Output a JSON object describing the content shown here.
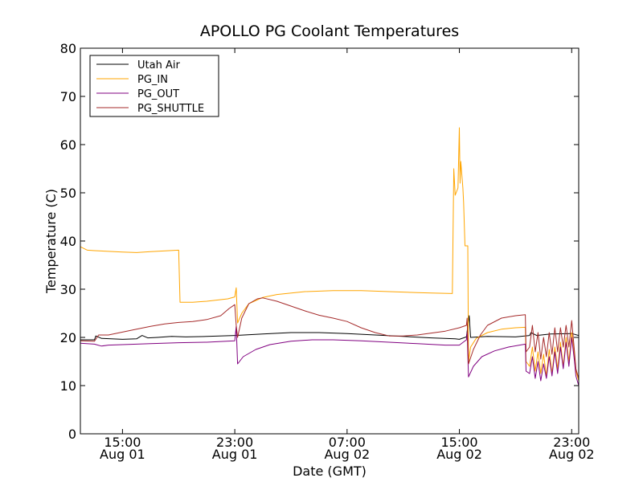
{
  "chart_data": {
    "type": "line",
    "title": "APOLLO PG Coolant Temperatures",
    "xlabel": "Date (GMT)",
    "ylabel": "Temperature (C)",
    "ylim": [
      0,
      80
    ],
    "xlim": [
      12,
      47.5
    ],
    "yticks": [
      0,
      10,
      20,
      30,
      40,
      50,
      60,
      70,
      80
    ],
    "xticks": [
      {
        "value": 15,
        "line1": "15:00",
        "line2": "Aug 01"
      },
      {
        "value": 23,
        "line1": "23:00",
        "line2": "Aug 01"
      },
      {
        "value": 31,
        "line1": "07:00",
        "line2": "Aug 02"
      },
      {
        "value": 39,
        "line1": "15:00",
        "line2": "Aug 02"
      },
      {
        "value": 47,
        "line1": "23:00",
        "line2": "Aug 02"
      }
    ],
    "legend_position": "top-left",
    "series": [
      {
        "name": "Utah Air",
        "color": "#000000",
        "points": [
          [
            12,
            19.5
          ],
          [
            13,
            19.5
          ],
          [
            13.1,
            20.3
          ],
          [
            13.5,
            19.8
          ],
          [
            15,
            19.6
          ],
          [
            16,
            19.7
          ],
          [
            16.4,
            20.4
          ],
          [
            16.8,
            19.9
          ],
          [
            17.5,
            20.0
          ],
          [
            18.5,
            20.2
          ],
          [
            19.5,
            20.1
          ],
          [
            21,
            20.2
          ],
          [
            23,
            20.4
          ],
          [
            25,
            20.7
          ],
          [
            27,
            21.0
          ],
          [
            29,
            21.0
          ],
          [
            31,
            20.8
          ],
          [
            33,
            20.5
          ],
          [
            35,
            20.2
          ],
          [
            37,
            19.9
          ],
          [
            38.7,
            19.7
          ],
          [
            39,
            19.6
          ],
          [
            39.5,
            20.1
          ],
          [
            39.7,
            24.5
          ],
          [
            39.8,
            20.0
          ],
          [
            41,
            20.2
          ],
          [
            43,
            20.1
          ],
          [
            44,
            20.4
          ],
          [
            44.1,
            21.0
          ],
          [
            44.5,
            20.4
          ],
          [
            45.5,
            20.7
          ],
          [
            47,
            20.8
          ],
          [
            47.5,
            20.4
          ]
        ]
      },
      {
        "name": "PG_IN",
        "color": "#ffa500",
        "points": [
          [
            12,
            38.8
          ],
          [
            12.5,
            38.1
          ],
          [
            13,
            38.0
          ],
          [
            15,
            37.7
          ],
          [
            16,
            37.6
          ],
          [
            17,
            37.8
          ],
          [
            19,
            38.1
          ],
          [
            19.1,
            27.3
          ],
          [
            20,
            27.3
          ],
          [
            21,
            27.5
          ],
          [
            22.5,
            28.0
          ],
          [
            23,
            28.4
          ],
          [
            23.1,
            30.3
          ],
          [
            23.2,
            23.0
          ],
          [
            23.5,
            25.0
          ],
          [
            24,
            27.0
          ],
          [
            25,
            28.3
          ],
          [
            26,
            28.9
          ],
          [
            28,
            29.5
          ],
          [
            30,
            29.7
          ],
          [
            32,
            29.7
          ],
          [
            34,
            29.5
          ],
          [
            36,
            29.3
          ],
          [
            37,
            29.2
          ],
          [
            38.5,
            29.1
          ],
          [
            38.6,
            55.0
          ],
          [
            38.7,
            49.5
          ],
          [
            38.9,
            51.0
          ],
          [
            39.0,
            63.5
          ],
          [
            39.05,
            52.0
          ],
          [
            39.1,
            56.5
          ],
          [
            39.25,
            51.0
          ],
          [
            39.3,
            48.0
          ],
          [
            39.4,
            39.0
          ],
          [
            39.6,
            39.0
          ],
          [
            39.65,
            15.0
          ],
          [
            39.8,
            18.0
          ],
          [
            40.2,
            19.8
          ],
          [
            41,
            21.0
          ],
          [
            42,
            21.7
          ],
          [
            43,
            22.0
          ],
          [
            43.7,
            22.1
          ],
          [
            43.75,
            15.0
          ],
          [
            44,
            14.0
          ],
          [
            44.2,
            18.0
          ],
          [
            44.4,
            13.0
          ],
          [
            44.6,
            17.0
          ],
          [
            44.8,
            12.5
          ],
          [
            45,
            16.5
          ],
          [
            45.2,
            12.0
          ],
          [
            45.4,
            17.5
          ],
          [
            45.6,
            12.5
          ],
          [
            45.8,
            18.0
          ],
          [
            46,
            13.5
          ],
          [
            46.2,
            19.0
          ],
          [
            46.4,
            14.0
          ],
          [
            46.6,
            20.0
          ],
          [
            46.8,
            15.0
          ],
          [
            47,
            21.0
          ],
          [
            47.2,
            16.0
          ],
          [
            47.3,
            13.0
          ],
          [
            47.5,
            11.0
          ]
        ]
      },
      {
        "name": "PG_OUT",
        "color": "#800080",
        "points": [
          [
            12,
            18.8
          ],
          [
            13,
            18.6
          ],
          [
            13.5,
            18.2
          ],
          [
            14,
            18.4
          ],
          [
            15,
            18.5
          ],
          [
            17,
            18.7
          ],
          [
            19,
            18.9
          ],
          [
            21,
            19.0
          ],
          [
            23,
            19.3
          ],
          [
            23.1,
            22.3
          ],
          [
            23.2,
            14.5
          ],
          [
            23.6,
            16.0
          ],
          [
            24.5,
            17.5
          ],
          [
            25.5,
            18.5
          ],
          [
            27,
            19.2
          ],
          [
            28.5,
            19.5
          ],
          [
            30,
            19.5
          ],
          [
            32,
            19.3
          ],
          [
            34,
            19.0
          ],
          [
            36,
            18.7
          ],
          [
            38,
            18.4
          ],
          [
            39,
            18.4
          ],
          [
            39.5,
            19.5
          ],
          [
            39.55,
            21.0
          ],
          [
            39.65,
            11.8
          ],
          [
            40,
            14.0
          ],
          [
            40.6,
            16.0
          ],
          [
            41.5,
            17.2
          ],
          [
            42.5,
            18.0
          ],
          [
            43.7,
            18.6
          ],
          [
            43.75,
            13.0
          ],
          [
            44,
            12.5
          ],
          [
            44.2,
            16.0
          ],
          [
            44.4,
            11.5
          ],
          [
            44.6,
            15.0
          ],
          [
            44.8,
            11.0
          ],
          [
            45,
            14.5
          ],
          [
            45.2,
            11.5
          ],
          [
            45.4,
            16.0
          ],
          [
            45.6,
            12.0
          ],
          [
            45.8,
            17.0
          ],
          [
            46,
            12.5
          ],
          [
            46.2,
            18.0
          ],
          [
            46.4,
            13.5
          ],
          [
            46.6,
            19.0
          ],
          [
            46.8,
            14.0
          ],
          [
            47,
            20.0
          ],
          [
            47.2,
            15.0
          ],
          [
            47.3,
            12.0
          ],
          [
            47.5,
            10.0
          ]
        ]
      },
      {
        "name": "PG_SHUTTLE",
        "color": "#a52a2a",
        "points": [
          [
            12,
            19.3
          ],
          [
            13,
            19.2
          ],
          [
            13.3,
            20.5
          ],
          [
            14,
            20.5
          ],
          [
            15,
            21.1
          ],
          [
            16,
            21.7
          ],
          [
            17,
            22.3
          ],
          [
            18,
            22.8
          ],
          [
            19,
            23.1
          ],
          [
            20,
            23.3
          ],
          [
            21,
            23.7
          ],
          [
            22,
            24.5
          ],
          [
            22.6,
            26.0
          ],
          [
            23,
            26.8
          ],
          [
            23.1,
            22.5
          ],
          [
            23.2,
            20.0
          ],
          [
            23.5,
            24.0
          ],
          [
            24,
            27.0
          ],
          [
            24.6,
            28.0
          ],
          [
            25,
            28.2
          ],
          [
            26,
            27.5
          ],
          [
            27,
            26.5
          ],
          [
            28,
            25.5
          ],
          [
            29,
            24.6
          ],
          [
            30,
            24.0
          ],
          [
            31,
            23.3
          ],
          [
            32,
            22.0
          ],
          [
            33,
            21.0
          ],
          [
            34,
            20.3
          ],
          [
            35,
            20.3
          ],
          [
            36,
            20.5
          ],
          [
            37,
            20.9
          ],
          [
            38,
            21.3
          ],
          [
            39,
            22.0
          ],
          [
            39.5,
            22.5
          ],
          [
            39.55,
            24.0
          ],
          [
            39.65,
            14.5
          ],
          [
            40,
            17.5
          ],
          [
            40.5,
            20.5
          ],
          [
            41,
            22.5
          ],
          [
            42,
            24.0
          ],
          [
            43,
            24.5
          ],
          [
            43.7,
            24.7
          ],
          [
            43.75,
            17.0
          ],
          [
            44,
            18.0
          ],
          [
            44.2,
            22.5
          ],
          [
            44.4,
            17.0
          ],
          [
            44.6,
            21.0
          ],
          [
            44.8,
            15.5
          ],
          [
            45,
            20.0
          ],
          [
            45.2,
            16.0
          ],
          [
            45.4,
            21.0
          ],
          [
            45.6,
            16.5
          ],
          [
            45.8,
            22.0
          ],
          [
            46,
            17.0
          ],
          [
            46.2,
            22.0
          ],
          [
            46.4,
            18.0
          ],
          [
            46.6,
            22.5
          ],
          [
            46.8,
            18.0
          ],
          [
            47,
            23.5
          ],
          [
            47.2,
            17.0
          ],
          [
            47.3,
            13.5
          ],
          [
            47.5,
            11.5
          ]
        ]
      }
    ]
  }
}
